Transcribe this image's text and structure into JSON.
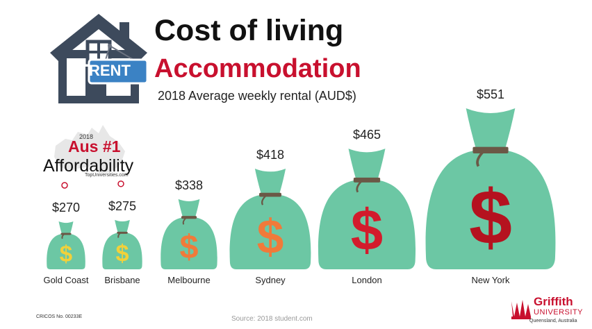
{
  "header": {
    "title": "Cost of living",
    "subtitle": "Accommodation",
    "caption": "2018 Average weekly rental (AUD$)",
    "house_sign": "RENT"
  },
  "badge": {
    "year": "2018",
    "rank": "Aus #1",
    "label": "Affordability",
    "source": "TopUniversities.com"
  },
  "chart_data": {
    "type": "bar",
    "title": "2018 Average weekly rental (AUD$)",
    "categories": [
      "Gold Coast",
      "Brisbane",
      "Melbourne",
      "Sydney",
      "London",
      "New York"
    ],
    "values": [
      270,
      275,
      338,
      418,
      465,
      551
    ],
    "value_labels": [
      "$270",
      "$275",
      "$338",
      "$418",
      "$465",
      "$551"
    ],
    "dollar_colors": [
      "#f2d13a",
      "#f2d13a",
      "#f07a3a",
      "#f07a3a",
      "#d31b2c",
      "#b5121f"
    ],
    "bag_color": "#6cc7a4",
    "tie_color": "#6b5846"
  },
  "footer": {
    "cricos": "CRICOS No. 00233E",
    "source": "Source: 2018 student.com",
    "logo_name": "Griffith",
    "logo_uni": "UNIVERSITY",
    "logo_loc": "Queensland, Australia"
  },
  "colors": {
    "accent": "#c8102e",
    "house": "#3d4a5c",
    "sign": "#3b82c4"
  }
}
